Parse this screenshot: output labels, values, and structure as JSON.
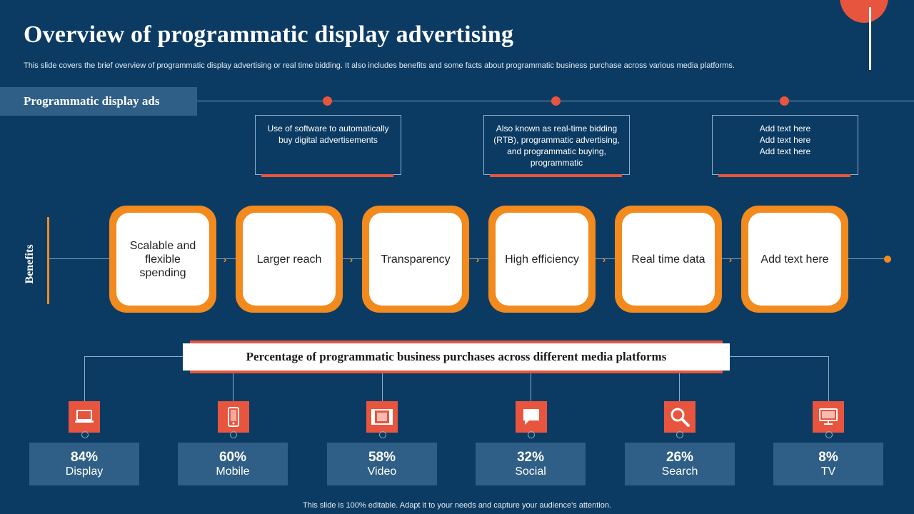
{
  "title": "Overview of programmatic  display advertising",
  "subtitle": "This slide covers the brief overview of programmatic display advertising or real time bidding. It also includes benefits and some facts about programmatic business purchase across various media platforms.",
  "ads": {
    "label": "Programmatic display ads",
    "boxes": [
      "Use of software to automatically buy digital advertisements",
      "Also known as real-time bidding (RTB), programmatic advertising, and programmatic buying, programmatic",
      "Add text here\nAdd text here\nAdd text here"
    ]
  },
  "benefits": {
    "label": "Benefits",
    "items": [
      "Scalable and flexible spending",
      "Larger reach",
      "Transparency",
      "High efficiency",
      "Real time data",
      "Add text here"
    ]
  },
  "platforms": {
    "title": "Percentage of programmatic business purchases across different media platforms",
    "items": [
      {
        "pct": "84%",
        "name": "Display",
        "icon": "laptop-icon"
      },
      {
        "pct": "60%",
        "name": "Mobile",
        "icon": "mobile-icon"
      },
      {
        "pct": "58%",
        "name": "Video",
        "icon": "video-icon"
      },
      {
        "pct": "32%",
        "name": "Social",
        "icon": "chat-icon"
      },
      {
        "pct": "26%",
        "name": "Search",
        "icon": "search-icon"
      },
      {
        "pct": "8%",
        "name": "TV",
        "icon": "tv-icon"
      }
    ]
  },
  "footer": "This slide is 100% editable. Adapt it to your needs and capture your audience's attention.",
  "colors": {
    "background": "#0b3b63",
    "accent_red": "#e8553e",
    "accent_orange": "#f28a1e",
    "panel": "#2f5f86"
  }
}
